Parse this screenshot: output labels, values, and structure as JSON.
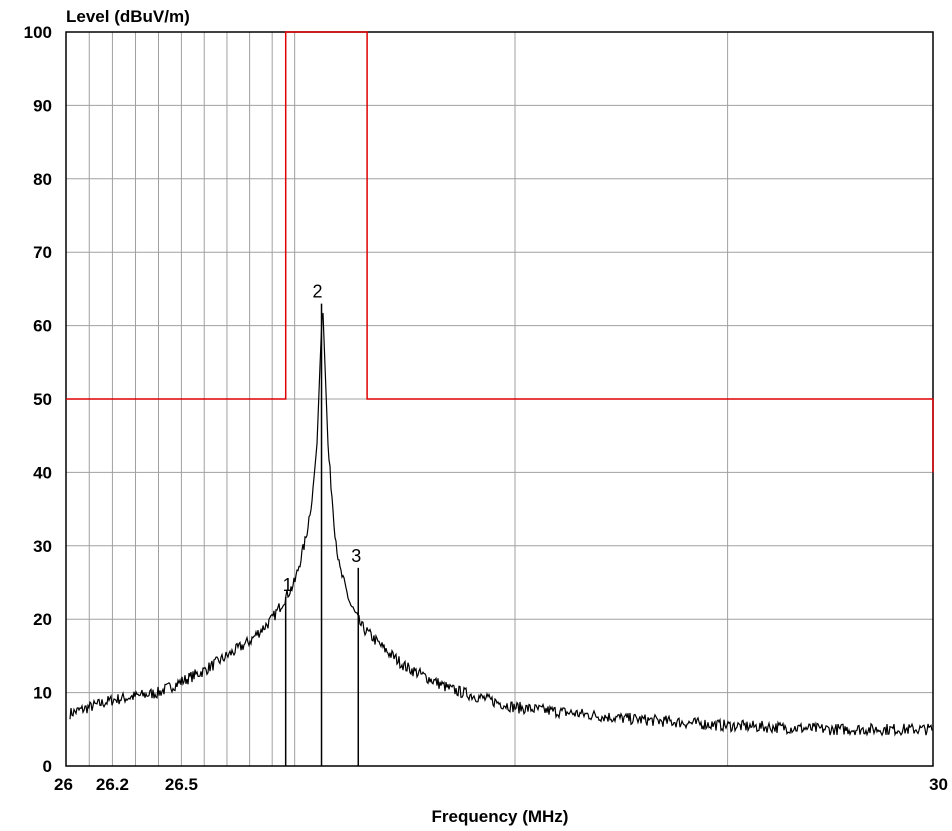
{
  "chart_data": {
    "type": "line",
    "xlabel": "Frequency (MHz)",
    "ylabel": "Level (dBuV/m)",
    "xscale": "log",
    "xlim": [
      26,
      30
    ],
    "ylim": [
      0,
      100
    ],
    "yticks": [
      0,
      10,
      20,
      30,
      40,
      50,
      60,
      70,
      80,
      90,
      100
    ],
    "xtick_labels": [
      {
        "value": 26,
        "label": "26"
      },
      {
        "value": 26.2,
        "label": "26.2"
      },
      {
        "value": 26.5,
        "label": "26.5"
      },
      {
        "value": 30,
        "label": "30"
      }
    ],
    "grid": true,
    "series": [
      {
        "role": "measurement",
        "color": "#000000",
        "x": [
          26.0,
          26.2,
          26.4,
          26.6,
          26.8,
          26.9,
          26.95,
          27.0,
          27.05,
          27.08,
          27.1,
          27.115,
          27.125,
          27.135,
          27.15,
          27.18,
          27.2,
          27.25,
          27.3,
          27.4,
          27.5,
          27.7,
          28.0,
          28.5,
          29.0,
          29.5,
          30.0
        ],
        "y": [
          7,
          9,
          10,
          13,
          17,
          20,
          22.5,
          25,
          31,
          37,
          44,
          56,
          63,
          55,
          43,
          32,
          27,
          22,
          19,
          16,
          13.5,
          10.5,
          8,
          6.5,
          5.5,
          5,
          5
        ]
      },
      {
        "role": "limit",
        "color": "#e00000",
        "x": [
          26.0,
          26.96,
          26.96,
          27.325,
          27.325,
          30.0,
          30.0
        ],
        "y": [
          50,
          50,
          100,
          100,
          50,
          50,
          40
        ]
      }
    ],
    "markers": [
      {
        "label": "1",
        "x": 26.96,
        "y": 23
      },
      {
        "label": "2",
        "x": 27.12,
        "y": 63
      },
      {
        "label": "3",
        "x": 27.285,
        "y": 27
      }
    ]
  }
}
